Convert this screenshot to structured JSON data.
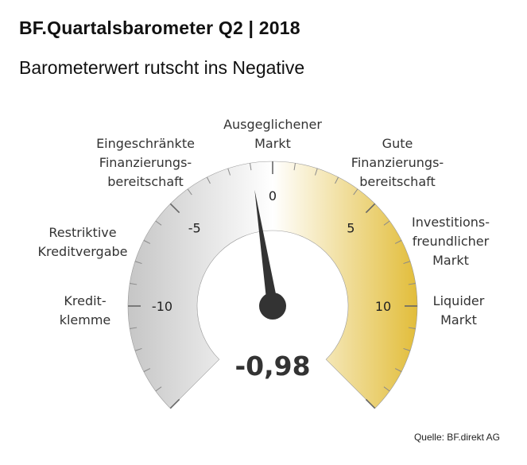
{
  "title": "BF.Quartalsbarometer Q2 | 2018",
  "subtitle": "Barometerwert rutscht ins Negative",
  "source": "Quelle: BF.direkt AG",
  "chart_data": {
    "type": "gauge",
    "value": -0.98,
    "value_label": "-0,98",
    "range": [
      -15,
      15
    ],
    "ticks": [
      {
        "value": -10,
        "label": "-10"
      },
      {
        "value": -5,
        "label": "-5"
      },
      {
        "value": 0,
        "label": "0"
      },
      {
        "value": 5,
        "label": "5"
      },
      {
        "value": 10,
        "label": "10"
      }
    ],
    "categories": [
      {
        "lines": [
          "Kredit-",
          "klemme"
        ]
      },
      {
        "lines": [
          "Restriktive",
          "Kreditvergabe"
        ]
      },
      {
        "lines": [
          "Eingeschränkte",
          "Finanzierungs-",
          "bereitschaft"
        ]
      },
      {
        "lines": [
          "Ausgeglichener",
          "Markt"
        ]
      },
      {
        "lines": [
          "Gute",
          "Finanzierungs-",
          "bereitschaft"
        ]
      },
      {
        "lines": [
          "Investitions-",
          "freundlicher",
          "Markt"
        ]
      },
      {
        "lines": [
          "Liquider",
          "Markt"
        ]
      }
    ],
    "colors": {
      "negative_dark": "#c6c6c6",
      "neutral": "#ffffff",
      "positive_dark": "#e2bd3a",
      "needle": "#333333"
    }
  }
}
